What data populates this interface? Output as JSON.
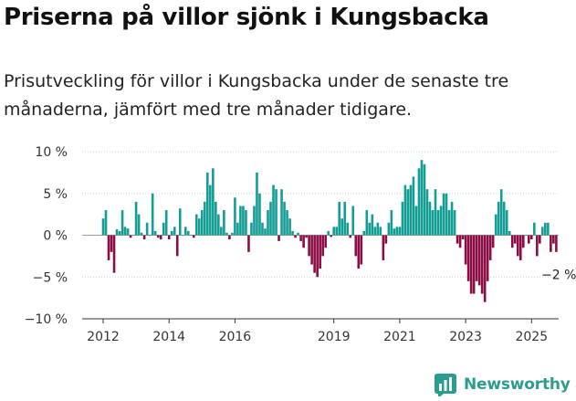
{
  "header": {
    "title": "Priserna på villor sjönk i Kungsbacka",
    "subtitle": "Prisutveckling för villor i Kungsbacka under de senaste tre månaderna, jämfört med tre månader tidigare."
  },
  "brand": {
    "name": "Newsworthy",
    "icon": "newsworthy-logo-icon"
  },
  "colors": {
    "positive": "#139d94",
    "negative": "#8c0d45",
    "axis": "#333333",
    "grid": "#cfcfcf"
  },
  "chart_data": {
    "type": "bar",
    "title": "Priserna på villor sjönk i Kungsbacka",
    "ylim": [
      -10,
      10
    ],
    "yticks": [
      -10,
      -5,
      0,
      5,
      10
    ],
    "ytick_labels": [
      "−10 %",
      "−5 %",
      "0 %",
      "5 %",
      "10 %"
    ],
    "xtick_labels": [
      "2012",
      "2014",
      "2016",
      "2019",
      "2021",
      "2023",
      "2025"
    ],
    "xtick_positions": [
      2012,
      2014,
      2016,
      2019,
      2021,
      2023,
      2025
    ],
    "grid": true,
    "last_value_label": "−2 %",
    "x_start": 2012.0,
    "x_step_months": 1,
    "values": [
      2,
      3,
      -3,
      -2,
      -4.5,
      0.7,
      0.5,
      3,
      1,
      0.8,
      -0.3,
      0,
      4,
      2.5,
      0.3,
      -0.5,
      1.5,
      0,
      5,
      0.5,
      -0.3,
      -0.5,
      1.5,
      3,
      -0.5,
      0.5,
      1,
      -2.5,
      3.2,
      0,
      1,
      0.5,
      0,
      -0.3,
      2.5,
      2,
      3,
      4,
      7.5,
      6,
      8,
      4,
      2.5,
      1,
      3,
      0.3,
      -0.5,
      0.3,
      4.5,
      1.5,
      3.5,
      3.5,
      3,
      -2,
      1.5,
      3.5,
      7.5,
      5,
      1.5,
      0.8,
      3,
      4,
      6,
      5.5,
      -0.7,
      5.5,
      4,
      3,
      2,
      0.5,
      -0.3,
      0.3,
      -0.7,
      -1.5,
      -0.3,
      -2.5,
      -3.5,
      -4.5,
      -5,
      -4,
      -2.5,
      -1.5,
      0.5,
      -0.2,
      1,
      1,
      4,
      2,
      4,
      1.5,
      -0.3,
      3.5,
      -2.5,
      -4,
      -3.5,
      0.5,
      3,
      1.5,
      2.5,
      1,
      1.5,
      1,
      -3,
      -1,
      1.5,
      3,
      0.8,
      1,
      1,
      4,
      6,
      5.5,
      6,
      7,
      3.5,
      8,
      9,
      8.5,
      5.5,
      4,
      3,
      5.5,
      3,
      3.5,
      5,
      5,
      3,
      4,
      3,
      -1,
      -1.5,
      -0.5,
      -3.5,
      -5.5,
      -7,
      -7,
      -5.5,
      -6,
      -7,
      -8,
      -5.5,
      -3,
      -1.5,
      2.5,
      4,
      5.5,
      4,
      3,
      0.5,
      -1.5,
      -1,
      -2.5,
      -3,
      -1.5,
      0,
      -1,
      -0.5,
      1.5,
      -2.5,
      -1,
      1,
      1.5,
      1.5,
      -2,
      -1,
      -2
    ]
  }
}
